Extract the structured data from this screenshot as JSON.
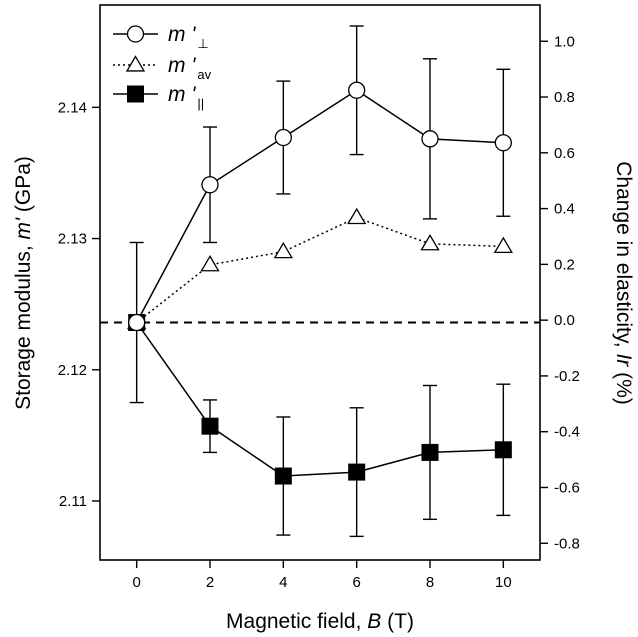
{
  "chart_data": {
    "type": "line",
    "x": [
      0,
      2,
      4,
      6,
      8,
      10
    ],
    "xlabel": "Magnetic field, ",
    "xlabel_var": "B",
    "xlabel_unit": " (T)",
    "ylabel": "Storage modulus, ",
    "ylabel_var": "m'",
    "ylabel_unit": " (GPa)",
    "y2label": "Change in elasticity, ",
    "y2label_var": "Ir",
    "y2label_unit": " (%)",
    "xlim": [
      -1,
      11
    ],
    "ylim": [
      2.1055,
      2.1478
    ],
    "y2lim": [
      -0.86,
      1.13
    ],
    "x_ticks": [
      0,
      2,
      4,
      6,
      8,
      10
    ],
    "y_ticks": [
      2.11,
      2.12,
      2.13,
      2.14
    ],
    "y_tick_labels": [
      "2.11",
      "2.12",
      "2.13",
      "2.14"
    ],
    "y2_ticks": [
      -0.8,
      -0.6,
      -0.4,
      -0.2,
      0.0,
      0.2,
      0.4,
      0.6,
      0.8,
      1.0
    ],
    "y2_tick_labels": [
      "-0.8",
      "-0.6",
      "-0.4",
      "-0.2",
      "0.0",
      "0.2",
      "0.4",
      "0.6",
      "0.8",
      "1.0"
    ],
    "reference_line_y": 2.1236,
    "legend_position": "top-left",
    "series": [
      {
        "name": "m '",
        "subscript": "⊥",
        "marker": "open-circle",
        "line": "solid",
        "values": [
          2.1236,
          2.1341,
          2.1377,
          2.1413,
          2.1376,
          2.1373
        ],
        "error": [
          0.0061,
          0.0044,
          0.0043,
          0.0049,
          0.0061,
          0.0056
        ]
      },
      {
        "name": "m '",
        "subscript": "av",
        "marker": "open-triangle",
        "line": "dotted",
        "values": [
          2.1236,
          2.128,
          2.129,
          2.1316,
          2.1296,
          2.1294
        ],
        "error": [
          0,
          0,
          0,
          0,
          0,
          0
        ]
      },
      {
        "name": "m '",
        "subscript": "||",
        "marker": "filled-square",
        "line": "solid",
        "values": [
          2.1236,
          2.1157,
          2.1119,
          2.1122,
          2.1137,
          2.1139
        ],
        "error": [
          0,
          0.002,
          0.0045,
          0.0049,
          0.0051,
          0.005
        ]
      }
    ]
  }
}
